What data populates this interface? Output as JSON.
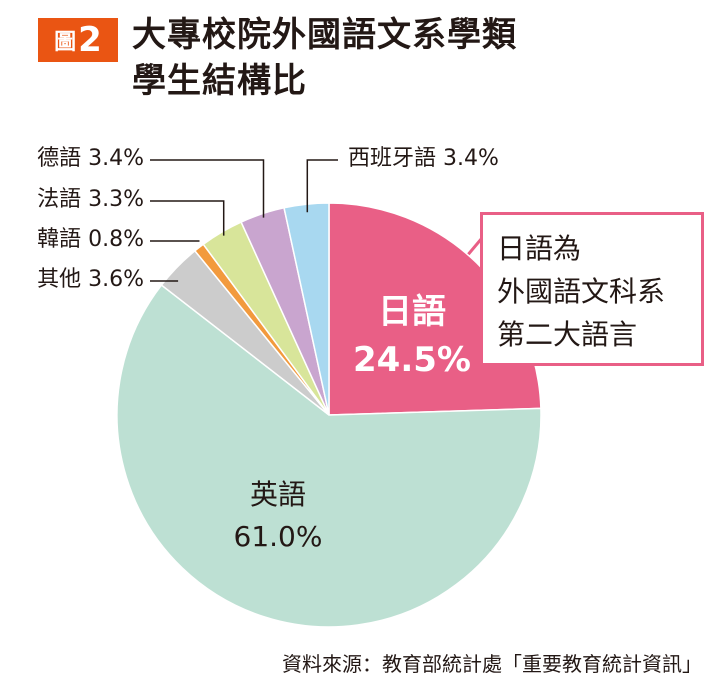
{
  "figure": {
    "label": "圖",
    "number": "2"
  },
  "title_lines": [
    "大專校院外國語文系學類",
    "學生結構比"
  ],
  "source": "資料來源：教育部統計處「重要教育統計資訊」",
  "callout": {
    "lines": [
      "日語為",
      "外國語文科系",
      "第二大語言"
    ],
    "border_color": "#e95f86"
  },
  "chart_data": {
    "type": "pie",
    "start": "12 o'clock, clockwise",
    "slices": [
      {
        "name": "日語",
        "value": 24.5,
        "value_label": "24.5%",
        "color": "#e95f86",
        "label_style": "inside-bold-white"
      },
      {
        "name": "英語",
        "value": 61.0,
        "value_label": "61.0%",
        "color": "#bde0d3",
        "label_style": "inside"
      },
      {
        "name": "其他",
        "value": 3.6,
        "value_label": "3.6%",
        "color": "#cccccc",
        "label_style": "leader-left"
      },
      {
        "name": "韓語",
        "value": 0.8,
        "value_label": "0.8%",
        "color": "#f29a3d",
        "label_style": "leader-left"
      },
      {
        "name": "法語",
        "value": 3.3,
        "value_label": "3.3%",
        "color": "#d8e59a",
        "label_style": "leader-left"
      },
      {
        "name": "德語",
        "value": 3.4,
        "value_label": "3.4%",
        "color": "#c9a5cf",
        "label_style": "leader-left"
      },
      {
        "name": "西班牙語",
        "value": 3.4,
        "value_label": "3.4%",
        "color": "#a8d8f0",
        "label_style": "leader-top"
      }
    ]
  }
}
